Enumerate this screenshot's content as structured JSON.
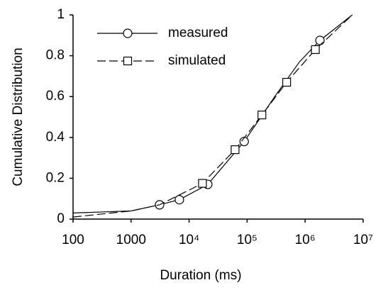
{
  "chart_data": {
    "type": "line",
    "xlabel": "Duration (ms)",
    "ylabel": "Cumulative Distribution",
    "xscale": "log",
    "xlim": [
      100,
      10000000
    ],
    "ylim": [
      0,
      1
    ],
    "xticks": [
      100,
      1000,
      {
        "value": 10000,
        "label": "10⁴"
      },
      {
        "value": 100000,
        "label": "10⁵"
      },
      {
        "value": 1000000,
        "label": "10⁶"
      },
      {
        "value": 10000000,
        "label": "10⁷"
      }
    ],
    "yticks": [
      0,
      0.2,
      0.4,
      0.6,
      0.8,
      1
    ],
    "legend": "upper left",
    "series": [
      {
        "name": "measured",
        "color": "#000000",
        "dash": "solid",
        "marker": "circle",
        "x": [
          100,
          1000,
          3100,
          6800,
          21000,
          89000,
          300000,
          800000,
          1800000,
          6500000
        ],
        "values": [
          0.03,
          0.04,
          0.07,
          0.095,
          0.17,
          0.38,
          0.6,
          0.77,
          0.875,
          1.0
        ],
        "marker_x": [
          3100,
          6800,
          21000,
          89000,
          1800000
        ],
        "marker_values": [
          0.07,
          0.095,
          0.17,
          0.38,
          0.875
        ]
      },
      {
        "name": "simulated",
        "color": "#000000",
        "dash": "dashed",
        "marker": "square",
        "x": [
          100,
          1000,
          3100,
          17000,
          62000,
          180000,
          480000,
          1500000,
          6500000
        ],
        "values": [
          0.01,
          0.04,
          0.07,
          0.175,
          0.34,
          0.51,
          0.67,
          0.83,
          1.0
        ],
        "marker_x": [
          17000,
          62000,
          180000,
          480000,
          1500000
        ],
        "marker_values": [
          0.175,
          0.34,
          0.51,
          0.67,
          0.83
        ]
      }
    ]
  }
}
